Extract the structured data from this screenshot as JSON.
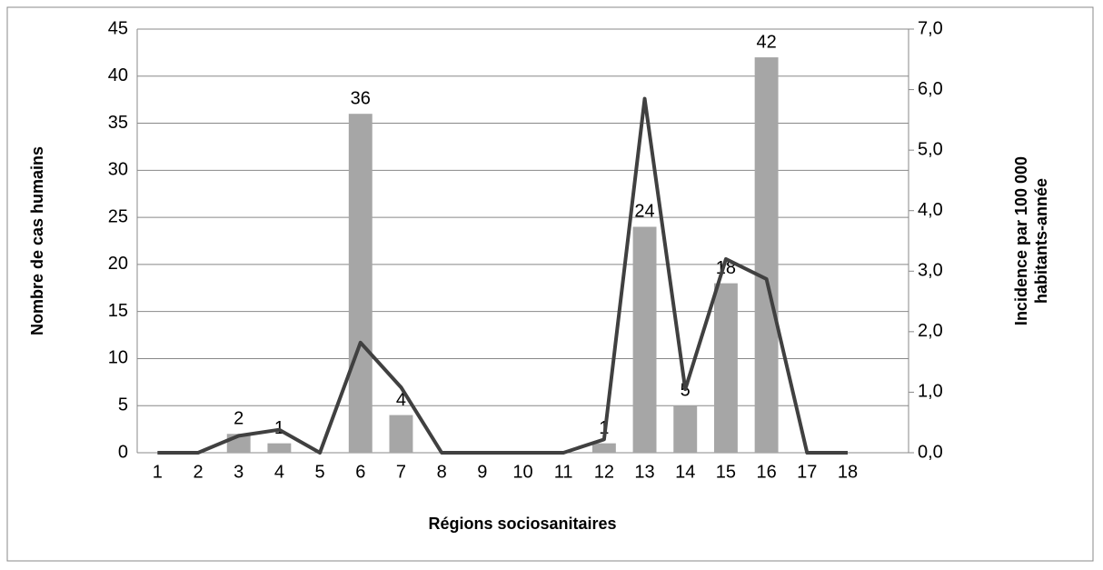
{
  "chart_data": {
    "type": "bar-line",
    "x_label": "Régions sociosanitaires",
    "y_label": "Nombre de cas humains",
    "y2_label": [
      "Incidence par 100 000",
      "habitants-année"
    ],
    "categories": [
      "1",
      "2",
      "3",
      "4",
      "5",
      "6",
      "7",
      "8",
      "9",
      "10",
      "11",
      "12",
      "13",
      "14",
      "15",
      "16",
      "17",
      "18",
      null
    ],
    "series": [
      {
        "type": "bar",
        "color": "#a6a6a6",
        "values": [
          0,
          0,
          2,
          1,
          0,
          36,
          4,
          0,
          0,
          0,
          0,
          1,
          24,
          5,
          18,
          42,
          0,
          0,
          null
        ],
        "value_labels": [
          null,
          null,
          "2",
          "1",
          null,
          "36",
          "4",
          null,
          null,
          null,
          null,
          "1",
          "24",
          "5",
          "18",
          "42",
          null,
          null,
          null
        ]
      },
      {
        "type": "line",
        "axis": "y2",
        "color": "#404040",
        "values": [
          0,
          0,
          0.28,
          0.38,
          0,
          1.82,
          1.08,
          0,
          0,
          0,
          0,
          0.22,
          5.85,
          1.05,
          3.2,
          2.87,
          0,
          0,
          null
        ]
      }
    ],
    "ylim": [
      0,
      45
    ],
    "yticks": [
      0,
      5,
      10,
      15,
      20,
      25,
      30,
      35,
      40,
      45
    ],
    "y2lim": [
      0,
      7
    ],
    "y2ticks": [
      {
        "value": 0,
        "label": "0,0"
      },
      {
        "value": 1,
        "label": "1,0"
      },
      {
        "value": 2,
        "label": "2,0"
      },
      {
        "value": 3,
        "label": "3,0"
      },
      {
        "value": 4,
        "label": "4,0"
      },
      {
        "value": 5,
        "label": "5,0"
      },
      {
        "value": 6,
        "label": "6,0"
      },
      {
        "value": 7,
        "label": "7,0"
      }
    ],
    "grid": true
  }
}
